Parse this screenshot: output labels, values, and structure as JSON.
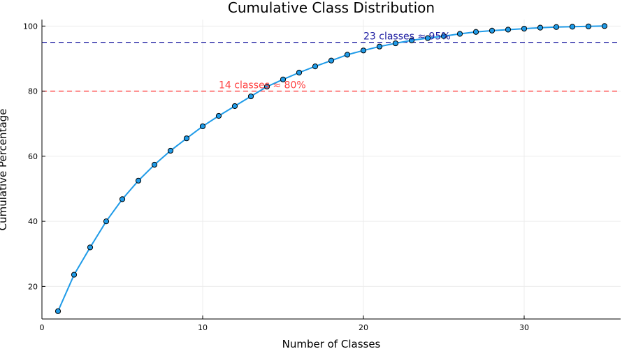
{
  "chart_data": {
    "type": "line",
    "title": "Cumulative Class Distribution",
    "xlabel": "Number of Classes",
    "ylabel": "Cumulative Percentage",
    "xlim": [
      0,
      36
    ],
    "ylim": [
      10,
      102
    ],
    "xticks": [
      0,
      10,
      20,
      30
    ],
    "yticks": [
      20,
      40,
      60,
      80,
      100
    ],
    "grid": true,
    "legend": "none",
    "series": [
      {
        "color": "#1f9be8",
        "x": [
          1,
          2,
          3,
          4,
          5,
          6,
          7,
          8,
          9,
          10,
          11,
          12,
          13,
          14,
          15,
          16,
          17,
          18,
          19,
          20,
          21,
          22,
          23,
          24,
          25,
          26,
          27,
          28,
          29,
          30,
          31,
          32,
          33,
          34,
          35
        ],
        "values": [
          12.4,
          23.6,
          32.0,
          40.0,
          46.8,
          52.5,
          57.4,
          61.7,
          65.5,
          69.2,
          72.4,
          75.4,
          78.4,
          81.4,
          83.6,
          85.7,
          87.6,
          89.4,
          91.2,
          92.5,
          93.7,
          94.7,
          95.6,
          96.3,
          96.9,
          97.6,
          98.2,
          98.6,
          98.9,
          99.2,
          99.5,
          99.7,
          99.8,
          99.9,
          100.0
        ]
      }
    ],
    "reference_lines": [
      {
        "y": 95,
        "color": "#1a1aa0",
        "label": "23 classes ≈ 95%",
        "label_x": 20
      },
      {
        "y": 80,
        "color": "#ff4040",
        "label": "14 classes ≈ 80%",
        "label_x": 11
      }
    ]
  }
}
